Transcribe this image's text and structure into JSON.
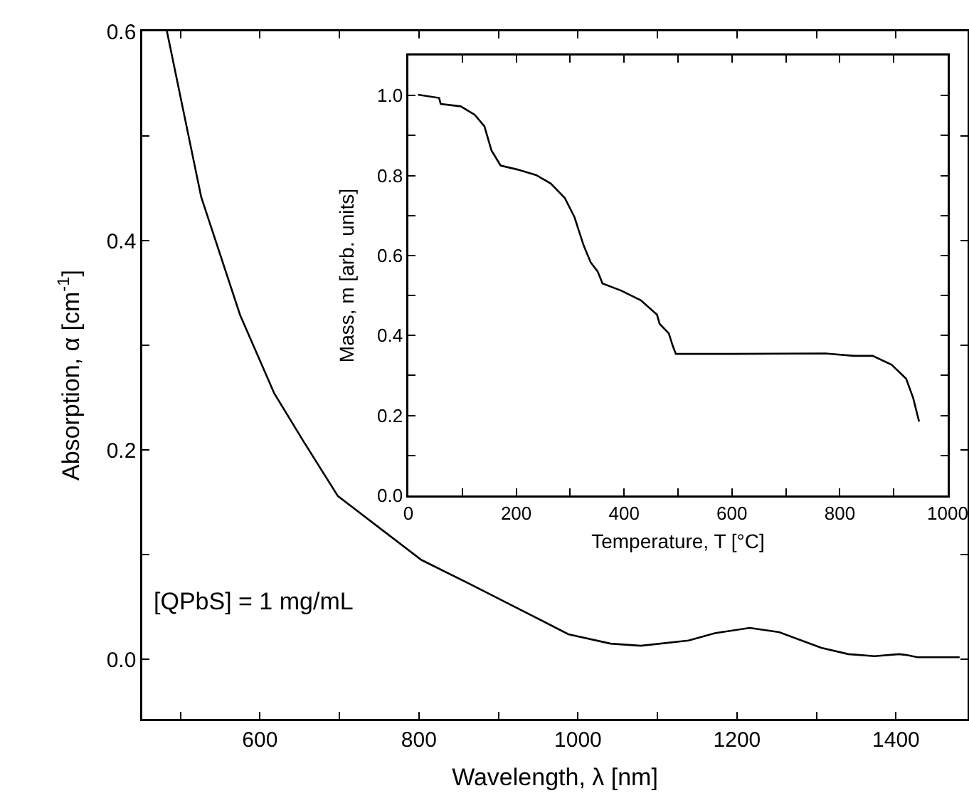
{
  "chart_data": [
    {
      "type": "line",
      "xlabel": "Wavelength, λ [nm]",
      "ylabel": "Absorption, α [cm$^{-1}$]",
      "annotations": [
        "[QPbS] = 1 mg/mL"
      ],
      "xlim": [
        452,
        1490
      ],
      "ylim": [
        -0.057,
        0.6
      ],
      "xticks": [
        {
          "value": 500,
          "label": null
        },
        600,
        {
          "value": 700,
          "label": null
        },
        800,
        {
          "value": 900,
          "label": null
        },
        1000,
        {
          "value": 1100,
          "label": null
        },
        1200,
        {
          "value": 1300,
          "label": null
        },
        1400
      ],
      "yticks": [
        {
          "value": 0,
          "label": "0.0"
        },
        {
          "value": 0.1,
          "label": null
        },
        0.2,
        {
          "value": 0.3,
          "label": null
        },
        0.4,
        {
          "value": 0.5,
          "label": null
        },
        0.6
      ],
      "grid": false,
      "marker": "none",
      "line_style": "solid",
      "series": [
        {
          "color": "#000000",
          "x": [
            483,
            526,
            575,
            618,
            655,
            698,
            753,
            803,
            864,
            926,
            988,
            1041,
            1079,
            1139,
            1172,
            1216,
            1253,
            1306,
            1340,
            1373,
            1404,
            1414,
            1427,
            1480
          ],
          "values": [
            0.6,
            0.442,
            0.329,
            0.254,
            0.208,
            0.156,
            0.124,
            0.095,
            0.072,
            0.048,
            0.024,
            0.015,
            0.013,
            0.018,
            0.025,
            0.03,
            0.026,
            0.011,
            0.005,
            0.003,
            0.005,
            0.004,
            0.002,
            0.002
          ]
        }
      ]
    },
    {
      "type": "line",
      "xlabel": "Temperature, T [°C]",
      "ylabel": "Mass, m [arb. units]",
      "xlim": [
        0,
        1000
      ],
      "ylim": [
        0,
        1.1
      ],
      "xticks": [
        0,
        {
          "value": 100,
          "label": null
        },
        200,
        {
          "value": 300,
          "label": null
        },
        400,
        {
          "value": 500,
          "label": null
        },
        600,
        {
          "value": 700,
          "label": null
        },
        800,
        {
          "value": 900,
          "label": null
        },
        1000
      ],
      "yticks": [
        {
          "value": 0,
          "label": "0.0"
        },
        {
          "value": 0.1,
          "label": null
        },
        0.2,
        {
          "value": 0.3,
          "label": null
        },
        0.4,
        {
          "value": 0.5,
          "label": null
        },
        0.6,
        {
          "value": 0.7,
          "label": null
        },
        0.8,
        {
          "value": 0.9,
          "label": null
        },
        {
          "value": 1,
          "label": "1.0"
        }
      ],
      "grid": false,
      "marker": "none",
      "line_style": "solid",
      "series": [
        {
          "color": "#000000",
          "x": [
            17.6,
            57,
            60,
            97,
            123,
            141,
            154,
            171,
            202,
            237,
            264,
            290,
            308,
            325,
            338,
            351,
            360,
            395,
            431,
            461,
            466,
            483,
            490,
            496,
            598,
            773,
            826,
            861,
            896,
            923,
            936,
            947
          ],
          "values": [
            1.002,
            0.994,
            0.979,
            0.973,
            0.952,
            0.923,
            0.863,
            0.825,
            0.815,
            0.801,
            0.78,
            0.744,
            0.696,
            0.625,
            0.583,
            0.56,
            0.53,
            0.512,
            0.488,
            0.452,
            0.429,
            0.405,
            0.375,
            0.354,
            0.354,
            0.355,
            0.349,
            0.349,
            0.327,
            0.292,
            0.244,
            0.185
          ]
        }
      ]
    }
  ]
}
